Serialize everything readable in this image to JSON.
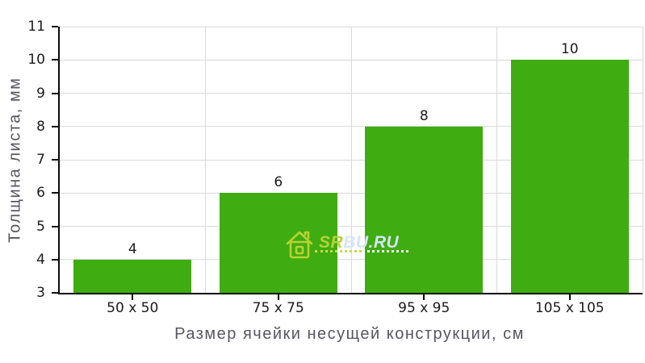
{
  "chart_data": {
    "type": "bar",
    "categories": [
      "50 x 50",
      "75 x 75",
      "95 x 95",
      "105 x 105"
    ],
    "values": [
      4,
      6,
      8,
      10
    ],
    "value_labels": [
      "4",
      "6",
      "8",
      "10"
    ],
    "title": "",
    "xlabel": "Размер ячейки несущей конструкции, см",
    "ylabel": "Толщина листа, мм",
    "ylim": [
      3,
      11
    ],
    "ytick_step": 1,
    "ytick_labels": [
      "3",
      "4",
      "5",
      "6",
      "7",
      "8",
      "9",
      "10",
      "11"
    ],
    "grid": true,
    "legend_position": "none",
    "bar_color": "#3fac12"
  },
  "watermark": {
    "icon": "house-icon",
    "site_prefix": "SR",
    "site_suffix": "BU.RU",
    "prefix_color": "#b6d233",
    "suffix_color": "#d6e4f6"
  },
  "colors": {
    "bar": "#3fac12",
    "grid": "#d9d9d9",
    "axis": "#0a0a0a",
    "tick_text": "#1b1b1b",
    "axis_title_text": "#56565e"
  }
}
